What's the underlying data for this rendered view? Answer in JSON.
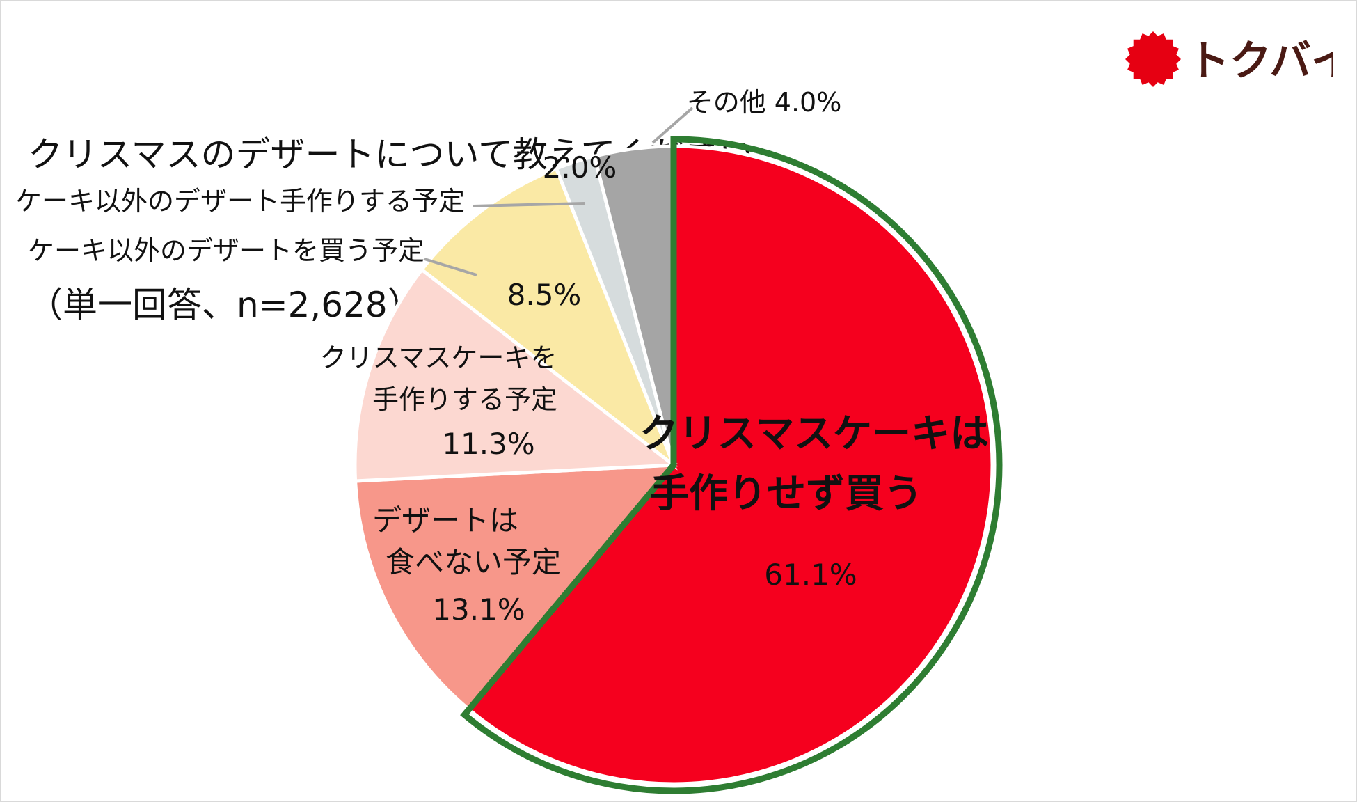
{
  "title": {
    "line1": "クリスマスのデザートについて教えてください",
    "line2": "（単一回答、n=2,628）"
  },
  "logo": {
    "text": "トクバイ",
    "color": "#e60012"
  },
  "chart_data": {
    "type": "pie",
    "title": "クリスマスのデザートについて教えてください（単一回答、n=2,628）",
    "slices": [
      {
        "label_lines": [
          "クリスマスケーキは",
          "手作りせず買う"
        ],
        "value": 61.1,
        "value_label": "61.1%",
        "color": "#f5001e",
        "highlight": true
      },
      {
        "label_lines": [
          "デザートは",
          "食べない予定"
        ],
        "value": 13.1,
        "value_label": "13.1%",
        "color": "#f7978a"
      },
      {
        "label_lines": [
          "クリスマスケーキを",
          "手作りする予定"
        ],
        "value": 11.3,
        "value_label": "11.3%",
        "color": "#fcd8d1"
      },
      {
        "label_lines": [
          "ケーキ以外のデザートを買う予定"
        ],
        "value": 8.5,
        "value_label": "8.5%",
        "color": "#fae9a5"
      },
      {
        "label_lines": [
          "ケーキ以外のデザート手作りする予定"
        ],
        "value": 2.0,
        "value_label": "2.0%",
        "color": "#d6dcdd"
      },
      {
        "label_lines": [
          "その他"
        ],
        "value": 4.0,
        "value_label": "4.0%",
        "color": "#a5a5a5"
      }
    ],
    "highlight_outline_color": "#2e7d32"
  }
}
